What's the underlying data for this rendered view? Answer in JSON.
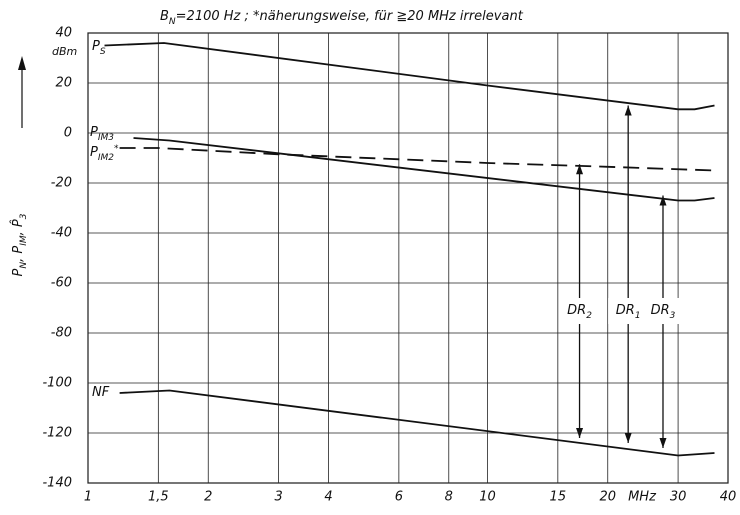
{
  "chart_data": {
    "type": "line",
    "title": {
      "main": "B",
      "sub": "N",
      "rest": "=2100 Hz ;  *näherungsweise, für ≧20 MHz irrelevant"
    },
    "y_label": [
      {
        "main": "P",
        "sub": "N"
      },
      {
        "main": ", P",
        "sub": "IM"
      },
      {
        "main": ", P̂",
        "sub": "3"
      }
    ],
    "y_unit": "dBm",
    "x_unit": "MHz",
    "log_x": true,
    "grid": true,
    "color": "#111111",
    "xlim": [
      1,
      40
    ],
    "xticks": [
      1,
      {
        "value": 1.5,
        "label": "1,5"
      },
      2,
      3,
      4,
      6,
      8,
      10,
      15,
      20,
      30,
      40
    ],
    "ylim": [
      -140,
      40
    ],
    "yticks": [
      -140,
      -120,
      -100,
      -80,
      -60,
      -40,
      -20,
      0,
      20,
      40
    ],
    "series": [
      {
        "label": "P",
        "sub": "S",
        "dashed": false,
        "x": [
          1.1,
          1.55,
          10,
          30,
          33,
          37
        ],
        "values": [
          35,
          36,
          19,
          9.5,
          9.5,
          11
        ]
      },
      {
        "label": "P",
        "sub": "IM3",
        "dashed": false,
        "x": [
          1.3,
          1.6,
          30,
          33,
          37
        ],
        "values": [
          -2,
          -3,
          -27,
          -27,
          -26
        ]
      },
      {
        "label": "P",
        "sub": "IM2",
        "sup": "*",
        "dashed": true,
        "x": [
          1.2,
          1.5,
          3,
          10,
          20,
          37
        ],
        "values": [
          -6,
          -6,
          -8.5,
          -12,
          -13.5,
          -15
        ]
      },
      {
        "label": "NF",
        "dashed": false,
        "x": [
          1.2,
          1.6,
          30,
          37
        ],
        "values": [
          -104,
          -103,
          -129,
          -128
        ]
      }
    ],
    "annotations": [
      {
        "text": "DR",
        "sub": "2",
        "x": 17,
        "y1": -12.5,
        "y2": -122
      },
      {
        "text": "DR",
        "sub": "1",
        "x": 22.5,
        "y1": 11,
        "y2": -124
      },
      {
        "text": "DR",
        "sub": "3",
        "x": 27.5,
        "y1": -25,
        "y2": -126
      }
    ]
  }
}
